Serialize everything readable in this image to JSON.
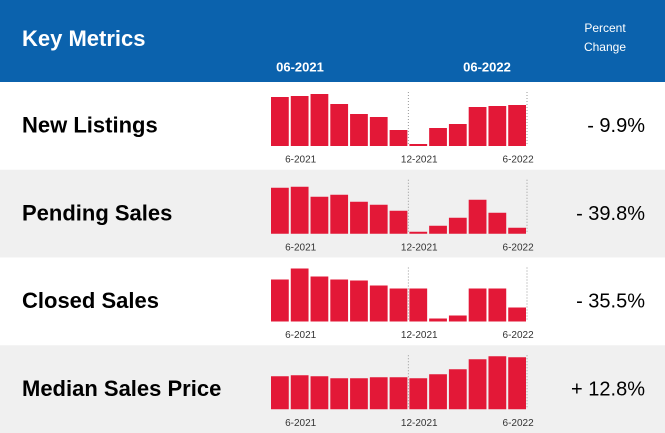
{
  "header": {
    "title": "Key Metrics",
    "start": "06-2021",
    "end": "06-2022",
    "change_label": [
      "Percent",
      "Change"
    ]
  },
  "axis_labels": [
    "6-2021",
    "12-2021",
    "6-2022"
  ],
  "bar_color": "#e31837",
  "rows": [
    {
      "label": "New Listings",
      "change": "- 9.9%",
      "bars": [
        49,
        50,
        52,
        42,
        32,
        29,
        16,
        2,
        18,
        22,
        39,
        40,
        41
      ]
    },
    {
      "label": "Pending Sales",
      "change": "- 39.8%",
      "bars": [
        46,
        47,
        37,
        39,
        32,
        29,
        23,
        2,
        8,
        16,
        34,
        21,
        6
      ]
    },
    {
      "label": "Closed Sales",
      "change": "- 35.5%",
      "bars": [
        42,
        53,
        45,
        42,
        41,
        36,
        33,
        33,
        3,
        6,
        33,
        33,
        14
      ]
    },
    {
      "label": "Median Sales Price",
      "change": "+ 12.8%",
      "bars": [
        33,
        34,
        33,
        31,
        31,
        32,
        32,
        31,
        35,
        40,
        50,
        53,
        52
      ]
    }
  ]
}
